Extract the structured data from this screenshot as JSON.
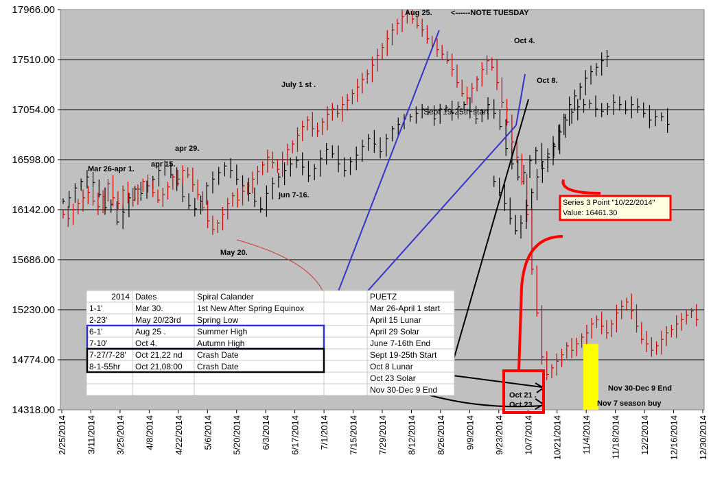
{
  "chart_data": {
    "type": "bar",
    "subtype": "ohlc-price-bars",
    "y_ticks": [
      "17966.00",
      "17510.00",
      "17054.00",
      "16598.00",
      "16142.00",
      "15686.00",
      "15230.00",
      "14774.00",
      "14318.00"
    ],
    "ylim": [
      14318,
      17966
    ],
    "x_ticks": [
      "2/25/2014",
      "3/11/2014",
      "3/25/2014",
      "4/8/2014",
      "4/22/2014",
      "5/6/2014",
      "5/20/2014",
      "6/3/2014",
      "6/17/2014",
      "7/1/2014",
      "7/15/2014",
      "7/29/2014",
      "8/12/2014",
      "8/26/2014",
      "9/9/2014",
      "9/23/2014",
      "10/7/2014",
      "10/21/2014",
      "11/4/2014",
      "11/18/2014",
      "12/2/2014",
      "12/16/2014",
      "12/30/2014"
    ],
    "grid": true,
    "colors": {
      "plot_bg": "#c0c0c0",
      "series_black": "#000000",
      "series_red": "#cc0000",
      "blue_lines": "#3333cc",
      "highlight": "#ffff00",
      "box_red": "#ff0000"
    },
    "series": [
      {
        "color": "black",
        "start_index": 0,
        "values": [
          16220,
          16250,
          16340,
          16400,
          16440,
          16390,
          16280,
          16160,
          16190,
          16030,
          16120,
          16250,
          16330,
          16290,
          16360,
          16420,
          16500,
          16540,
          16460,
          16380,
          16260,
          16180,
          16150,
          16220,
          16360,
          16420,
          16480,
          16540,
          16500,
          16420,
          16360,
          16290,
          16220,
          16150,
          16290,
          16380,
          16440,
          16500,
          16560,
          16590,
          16530,
          16450,
          16520,
          16610,
          16690,
          16650,
          16560,
          16500,
          16580,
          16640,
          16720,
          16790,
          16740,
          16670,
          16790,
          16880,
          16920,
          16970,
          16990,
          17020,
          17060,
          17030,
          16970,
          17060,
          17070,
          17020,
          17080,
          17100,
          17040,
          16970,
          17030,
          17100,
          17020,
          16900,
          16700,
          16560,
          16440,
          16480,
          16590,
          16680,
          16580,
          16650,
          16720,
          16850,
          16960,
          17030,
          17080,
          17100,
          17110,
          17060,
          17040,
          17080,
          17120,
          17100,
          17050,
          17100,
          17080,
          17020,
          16960,
          16990,
          16990,
          16920
        ]
      },
      {
        "color": "red",
        "start_index": 0,
        "values": [
          16100,
          16060,
          16140,
          16200,
          16250,
          16300,
          16220,
          16170,
          16260,
          16380,
          16250,
          16200,
          16320,
          16280,
          16230,
          16330,
          16400,
          16360,
          16300,
          16230,
          16280,
          16350,
          16440,
          16420,
          16500,
          16460,
          16370,
          16280,
          16160,
          16040,
          15960,
          16020,
          16100,
          16200,
          16270,
          16230,
          16310,
          16360,
          16420,
          16490,
          16550,
          16620,
          16570,
          16510,
          16600,
          16690,
          16740,
          16820,
          16900,
          16960,
          16880,
          16860,
          16940,
          17010,
          17060,
          17020,
          17100,
          17140,
          17200,
          17260,
          17330,
          17380,
          17460,
          17550,
          17620,
          17700,
          17780,
          17840,
          17900,
          17940,
          17880,
          17820,
          17780,
          17700,
          17640,
          17600,
          17560,
          17500,
          17420,
          17300,
          17200,
          17160,
          17250,
          17330,
          17420,
          17500,
          17440,
          17300,
          17120,
          16940,
          16760,
          16620,
          16400,
          16100,
          15600,
          15200,
          14800,
          14640,
          14700,
          14760,
          14820,
          14900,
          14860,
          14920,
          14980,
          15020,
          15100,
          15140,
          15080,
          15020,
          15100,
          15200,
          15260,
          15300,
          15220,
          15080,
          14960,
          14920,
          14860,
          14900,
          14960,
          15020,
          15050,
          15100,
          15140,
          15180,
          15220,
          15140
        ]
      },
      {
        "color": "black",
        "label": "Series 3",
        "start_index": 108,
        "values": [
          16400,
          16300,
          16200,
          16060,
          15950,
          16020,
          16180,
          16300,
          16440,
          16520,
          16620,
          16740,
          16860,
          16980,
          17100,
          17180,
          17260,
          17340,
          17400,
          17440,
          17500,
          17540
        ]
      }
    ],
    "annotations": [
      "Mar 26-apr 1.",
      "apr 15.",
      "apr 29.",
      "May 20.",
      "jun 7-16.",
      "July 1 st .",
      "Aug 25.",
      "<------NOTE TUESDAY",
      "Oct 4.",
      "Oct 8.",
      "Sept 19-25th start",
      "Oct 21 .",
      "Oct 23.",
      "Nov 30-Dec 9 End",
      "Nov 7 season buy"
    ],
    "tooltip": {
      "line1": "Series 3 Point \"10/22/2014\"",
      "line2": "Value: 16461.30"
    },
    "table": {
      "headers": [
        "2014",
        "Dates",
        "Spiral Calander",
        "",
        "PUETZ"
      ],
      "rows": [
        [
          "1-1'",
          "Mar 30.",
          "1st New After Spring Equinox",
          "",
          "Mar 26-April 1 start"
        ],
        [
          "2-23'",
          "May 20/23rd",
          "Spring Low",
          "",
          "April 15 Lunar"
        ],
        [
          "6-1'",
          "Aug 25 .",
          "Summer High",
          "",
          "April 29 Solar"
        ],
        [
          "7-10'",
          "Oct 4.",
          "Autumn High",
          "",
          "June 7-16th End"
        ],
        [
          "7-27/7-28'",
          "Oct 21,22 nd",
          "Crash Date",
          "",
          "Sept 19-25th Start"
        ],
        [
          "8-1-55hr",
          "Oct 21,08:00",
          "Crash Date",
          "",
          "Oct 8 Lunar"
        ],
        [
          "",
          "",
          "",
          "",
          "Oct 23 Solar"
        ],
        [
          "",
          "",
          "",
          "",
          "Nov 30-Dec 9 End"
        ]
      ]
    }
  }
}
